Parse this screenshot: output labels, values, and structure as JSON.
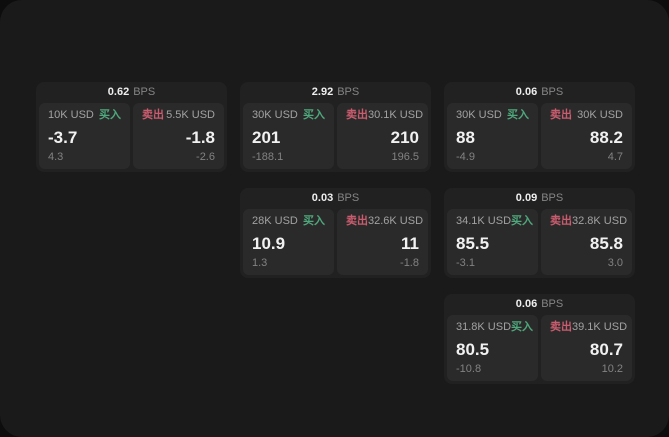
{
  "labels": {
    "bps_unit": "BPS",
    "buy": "买入",
    "sell": "卖出"
  },
  "colors": {
    "panel_bg": "#1a1a1a",
    "card_bg": "#212121",
    "tile_bg": "#2a2a2a",
    "buy_green": "#4fa77c",
    "sell_red": "#c95c6e"
  },
  "cards": [
    {
      "spread": "0.62",
      "buy": {
        "amount": "10K USD",
        "price": "-3.7",
        "delta": "4.3"
      },
      "sell": {
        "amount": "5.5K USD",
        "price": "-1.8",
        "delta": "-2.6"
      }
    },
    {
      "spread": "2.92",
      "buy": {
        "amount": "30K USD",
        "price": "201",
        "delta": "-188.1"
      },
      "sell": {
        "amount": "30.1K USD",
        "price": "210",
        "delta": "196.5"
      }
    },
    {
      "spread": "0.06",
      "buy": {
        "amount": "30K USD",
        "price": "88",
        "delta": "-4.9"
      },
      "sell": {
        "amount": "30K USD",
        "price": "88.2",
        "delta": "4.7"
      }
    },
    {
      "spread": "0.03",
      "buy": {
        "amount": "28K USD",
        "price": "10.9",
        "delta": "1.3"
      },
      "sell": {
        "amount": "32.6K USD",
        "price": "11",
        "delta": "-1.8"
      }
    },
    {
      "spread": "0.09",
      "buy": {
        "amount": "34.1K USD",
        "price": "85.5",
        "delta": "-3.1"
      },
      "sell": {
        "amount": "32.8K USD",
        "price": "85.8",
        "delta": "3.0"
      }
    },
    {
      "spread": "0.06",
      "buy": {
        "amount": "31.8K USD",
        "price": "80.5",
        "delta": "-10.8"
      },
      "sell": {
        "amount": "39.1K USD",
        "price": "80.7",
        "delta": "10.2"
      }
    }
  ]
}
